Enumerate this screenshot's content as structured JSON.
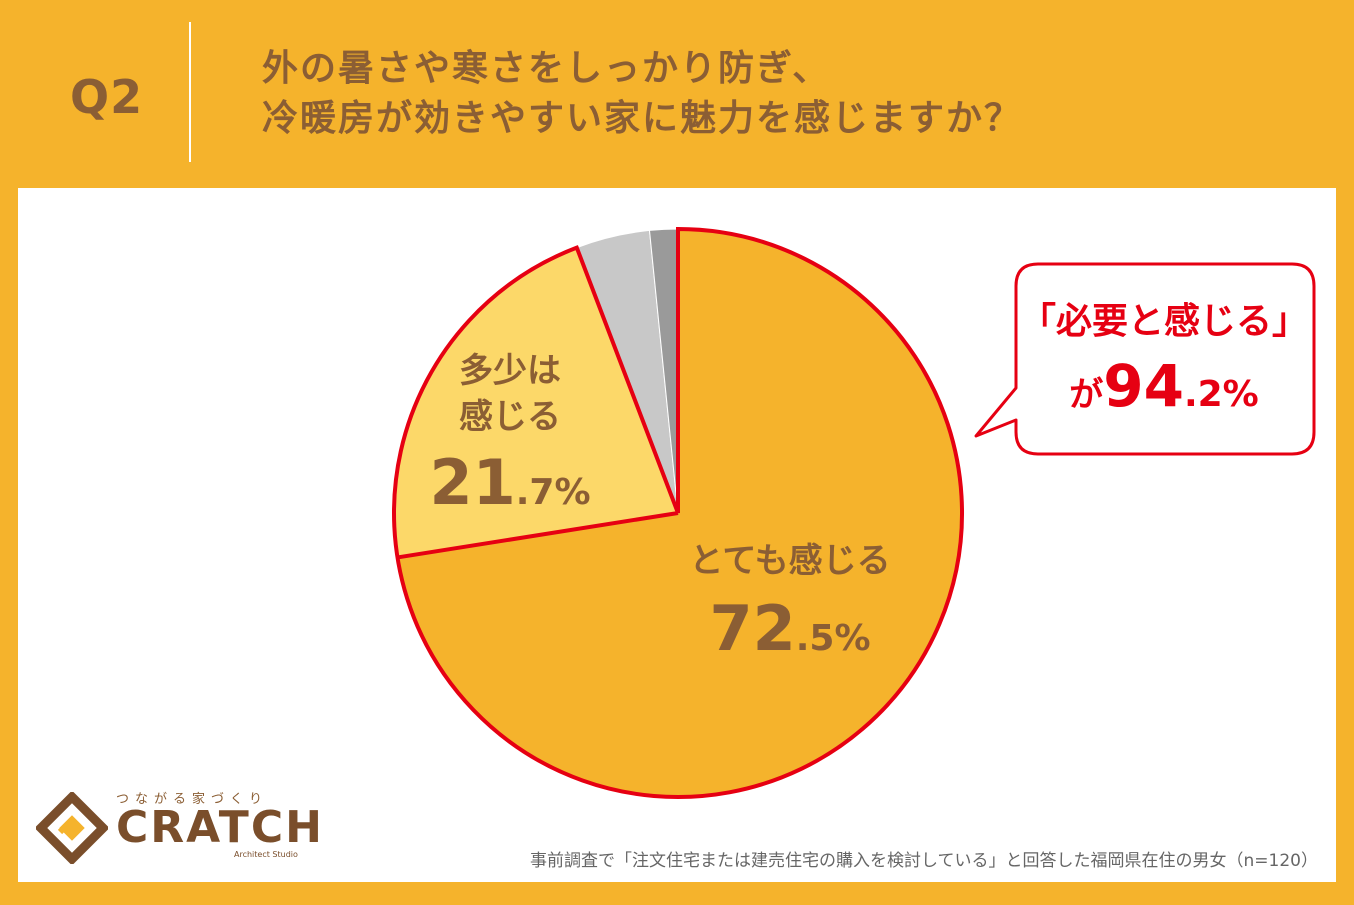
{
  "header": {
    "q_label": "Q2",
    "question_line1": "外の暑さや寒さをしっかり防ぎ、",
    "question_line2": "冷暖房が効きやすい家に魅力を感じますか？"
  },
  "callout": {
    "line1": "「必要と感じる」",
    "prefix": "が",
    "value_int": "94",
    "value_dec": ".2%"
  },
  "slice_labels": {
    "s1_name": "とても感じる",
    "s1_int": "72",
    "s1_dec": ".5%",
    "s2_name_line1": "多少は",
    "s2_name_line2": "感じる",
    "s2_int": "21",
    "s2_dec": ".7%"
  },
  "footnote": "事前調査で「注文住宅または建売住宅の購入を検討している」と回答した福岡県在住の男女（n=120）",
  "logo": {
    "tagline": "つながる家づくり",
    "name": "CRATCH",
    "sub": "Architect Studio"
  },
  "chart_data": {
    "type": "pie",
    "categories": [
      "とても感じる",
      "多少は感じる",
      "",
      ""
    ],
    "values": [
      72.5,
      21.7,
      4.2,
      1.6
    ],
    "colors": [
      "#F5B32C",
      "#FCD869",
      "#C8C8C8",
      "#9A9A9A"
    ],
    "highlight_color": "#E60012"
  }
}
